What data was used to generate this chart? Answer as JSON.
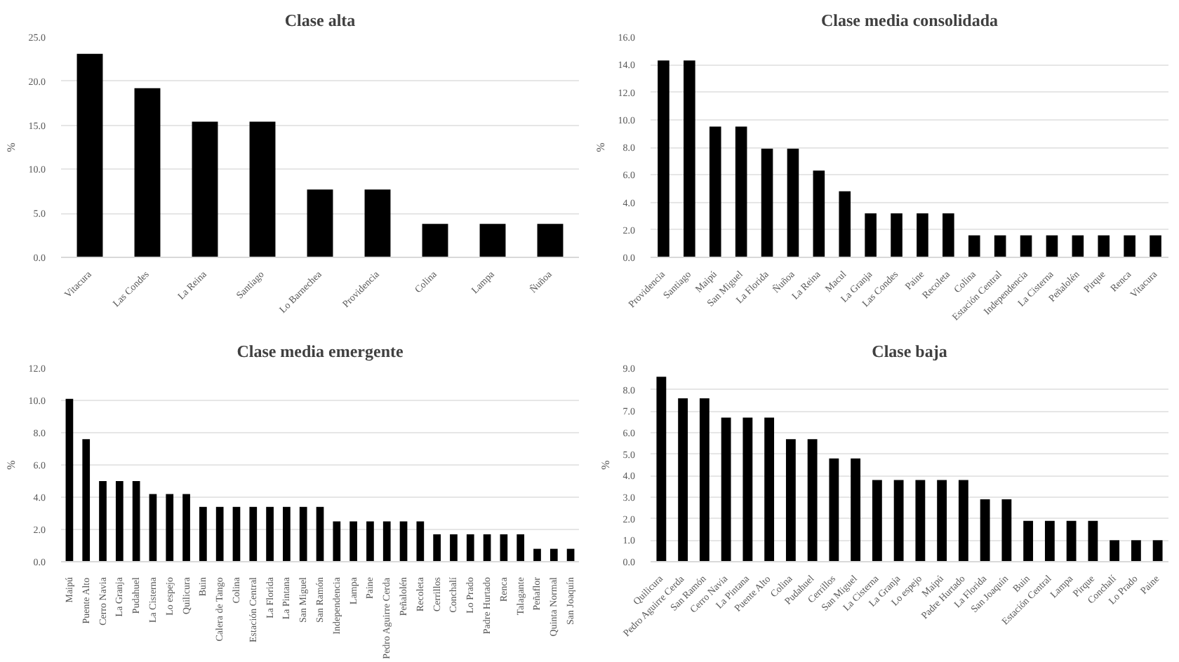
{
  "chart_data": [
    {
      "type": "bar",
      "title": "Clase alta",
      "ylabel": "%",
      "color": "#000000",
      "grid": "y",
      "categories": [
        "Vitacura",
        "Las Condes",
        "La Reina",
        "Santiago",
        "Lo Barnechea",
        "Providencia",
        "Colina",
        "Lampa",
        "Ñuñoa"
      ],
      "values": [
        23.1,
        19.2,
        15.4,
        15.4,
        7.7,
        7.7,
        3.8,
        3.8,
        3.8
      ],
      "ylim": [
        0,
        25
      ],
      "yticks": [
        {
          "value": 0,
          "label": "0.0"
        },
        {
          "value": 5,
          "label": "5.0"
        },
        {
          "value": 10,
          "label": "10.0"
        },
        {
          "value": 15,
          "label": "15.0"
        },
        {
          "value": 20,
          "label": "20.0"
        },
        {
          "value": 25,
          "label": "25.0"
        }
      ]
    },
    {
      "type": "bar",
      "title": "Clase media consolidada",
      "ylabel": "%",
      "color": "#000000",
      "grid": "y",
      "categories": [
        "Providencia",
        "Santiago",
        "Maipú",
        "San Miguel",
        "La Florida",
        "Ñuñoa",
        "La Reina",
        "Macul",
        "La Granja",
        "Las Condes",
        "Paine",
        "Recoleta",
        "Colina",
        "Estación Central",
        "Independencia",
        "La Cisterna",
        "Peñalolén",
        "Pirque",
        "Renca",
        "Vitacura"
      ],
      "values": [
        14.3,
        14.3,
        9.5,
        9.5,
        7.9,
        7.9,
        6.3,
        4.8,
        3.2,
        3.2,
        3.2,
        3.2,
        1.6,
        1.6,
        1.6,
        1.6,
        1.6,
        1.6,
        1.6,
        1.6
      ],
      "ylim": [
        0,
        16
      ],
      "yticks": [
        {
          "value": 0,
          "label": "0.0"
        },
        {
          "value": 2,
          "label": "2.0"
        },
        {
          "value": 4,
          "label": "4.0"
        },
        {
          "value": 6,
          "label": "6.0"
        },
        {
          "value": 8,
          "label": "8.0"
        },
        {
          "value": 10,
          "label": "10.0"
        },
        {
          "value": 12,
          "label": "12.0"
        },
        {
          "value": 14,
          "label": "14.0"
        },
        {
          "value": 16,
          "label": "16.0"
        }
      ]
    },
    {
      "type": "bar",
      "title": "Clase media emergente",
      "ylabel": "%",
      "color": "#000000",
      "grid": "y",
      "categories": [
        "Maipú",
        "Puente Alto",
        "Cerro Navia",
        "La Granja",
        "Pudahuel",
        "La Cisterna",
        "Lo espejo",
        "Quilicura",
        "Buin",
        "Calera de Tango",
        "Colina",
        "Estación Central",
        "La Florida",
        "La Pintana",
        "San Miguel",
        "San Ramón",
        "Independencia",
        "Lampa",
        "Paine",
        "Pedro Aguirre Cerda",
        "Peñalolén",
        "Recoleta",
        "Cerrillos",
        "Conchalí",
        "Lo Prado",
        "Padre Hurtado",
        "Renca",
        "Talagante",
        "Peñaflor",
        "Quinta Normal",
        "San Joaquín"
      ],
      "values": [
        10.1,
        7.6,
        5.0,
        5.0,
        5.0,
        4.2,
        4.2,
        4.2,
        3.4,
        3.4,
        3.4,
        3.4,
        3.4,
        3.4,
        3.4,
        3.4,
        2.5,
        2.5,
        2.5,
        2.5,
        2.5,
        2.5,
        1.7,
        1.7,
        1.7,
        1.7,
        1.7,
        1.7,
        0.8,
        0.8,
        0.8
      ],
      "ylim": [
        0,
        12
      ],
      "yticks": [
        {
          "value": 0,
          "label": "0.0"
        },
        {
          "value": 2,
          "label": "2.0"
        },
        {
          "value": 4,
          "label": "4.0"
        },
        {
          "value": 6,
          "label": "6.0"
        },
        {
          "value": 8,
          "label": "8.0"
        },
        {
          "value": 10,
          "label": "10.0"
        },
        {
          "value": 12,
          "label": "12.0"
        }
      ]
    },
    {
      "type": "bar",
      "title": "Clase baja",
      "ylabel": "%",
      "color": "#000000",
      "grid": "y",
      "categories": [
        "Quilicura",
        "Pedro Aguirre Cerda",
        "San Ramón",
        "Cerro Navia",
        "La Pintana",
        "Puente Alto",
        "Colina",
        "Pudahuel",
        "Cerrillos",
        "San Miguel",
        "La Cisterna",
        "La Granja",
        "Lo espejo",
        "Maipú",
        "Padre Hurtado",
        "La Florida",
        "San Joaquín",
        "Buin",
        "Estación Central",
        "Lampa",
        "Pirque",
        "Conchalí",
        "Lo Prado",
        "Paine"
      ],
      "values": [
        8.6,
        7.6,
        7.6,
        6.7,
        6.7,
        6.7,
        5.7,
        5.7,
        4.8,
        4.8,
        3.8,
        3.8,
        3.8,
        3.8,
        3.8,
        2.9,
        2.9,
        1.9,
        1.9,
        1.9,
        1.9,
        1.0,
        1.0,
        1.0
      ],
      "ylim": [
        0,
        9
      ],
      "yticks": [
        {
          "value": 0,
          "label": "0.0"
        },
        {
          "value": 1,
          "label": "1.0"
        },
        {
          "value": 2,
          "label": "2.0"
        },
        {
          "value": 3,
          "label": "3.0"
        },
        {
          "value": 4,
          "label": "4.0"
        },
        {
          "value": 5,
          "label": "5.0"
        },
        {
          "value": 6,
          "label": "6.0"
        },
        {
          "value": 7,
          "label": "7.0"
        },
        {
          "value": 8,
          "label": "8.0"
        },
        {
          "value": 9,
          "label": "9.0"
        }
      ]
    }
  ]
}
